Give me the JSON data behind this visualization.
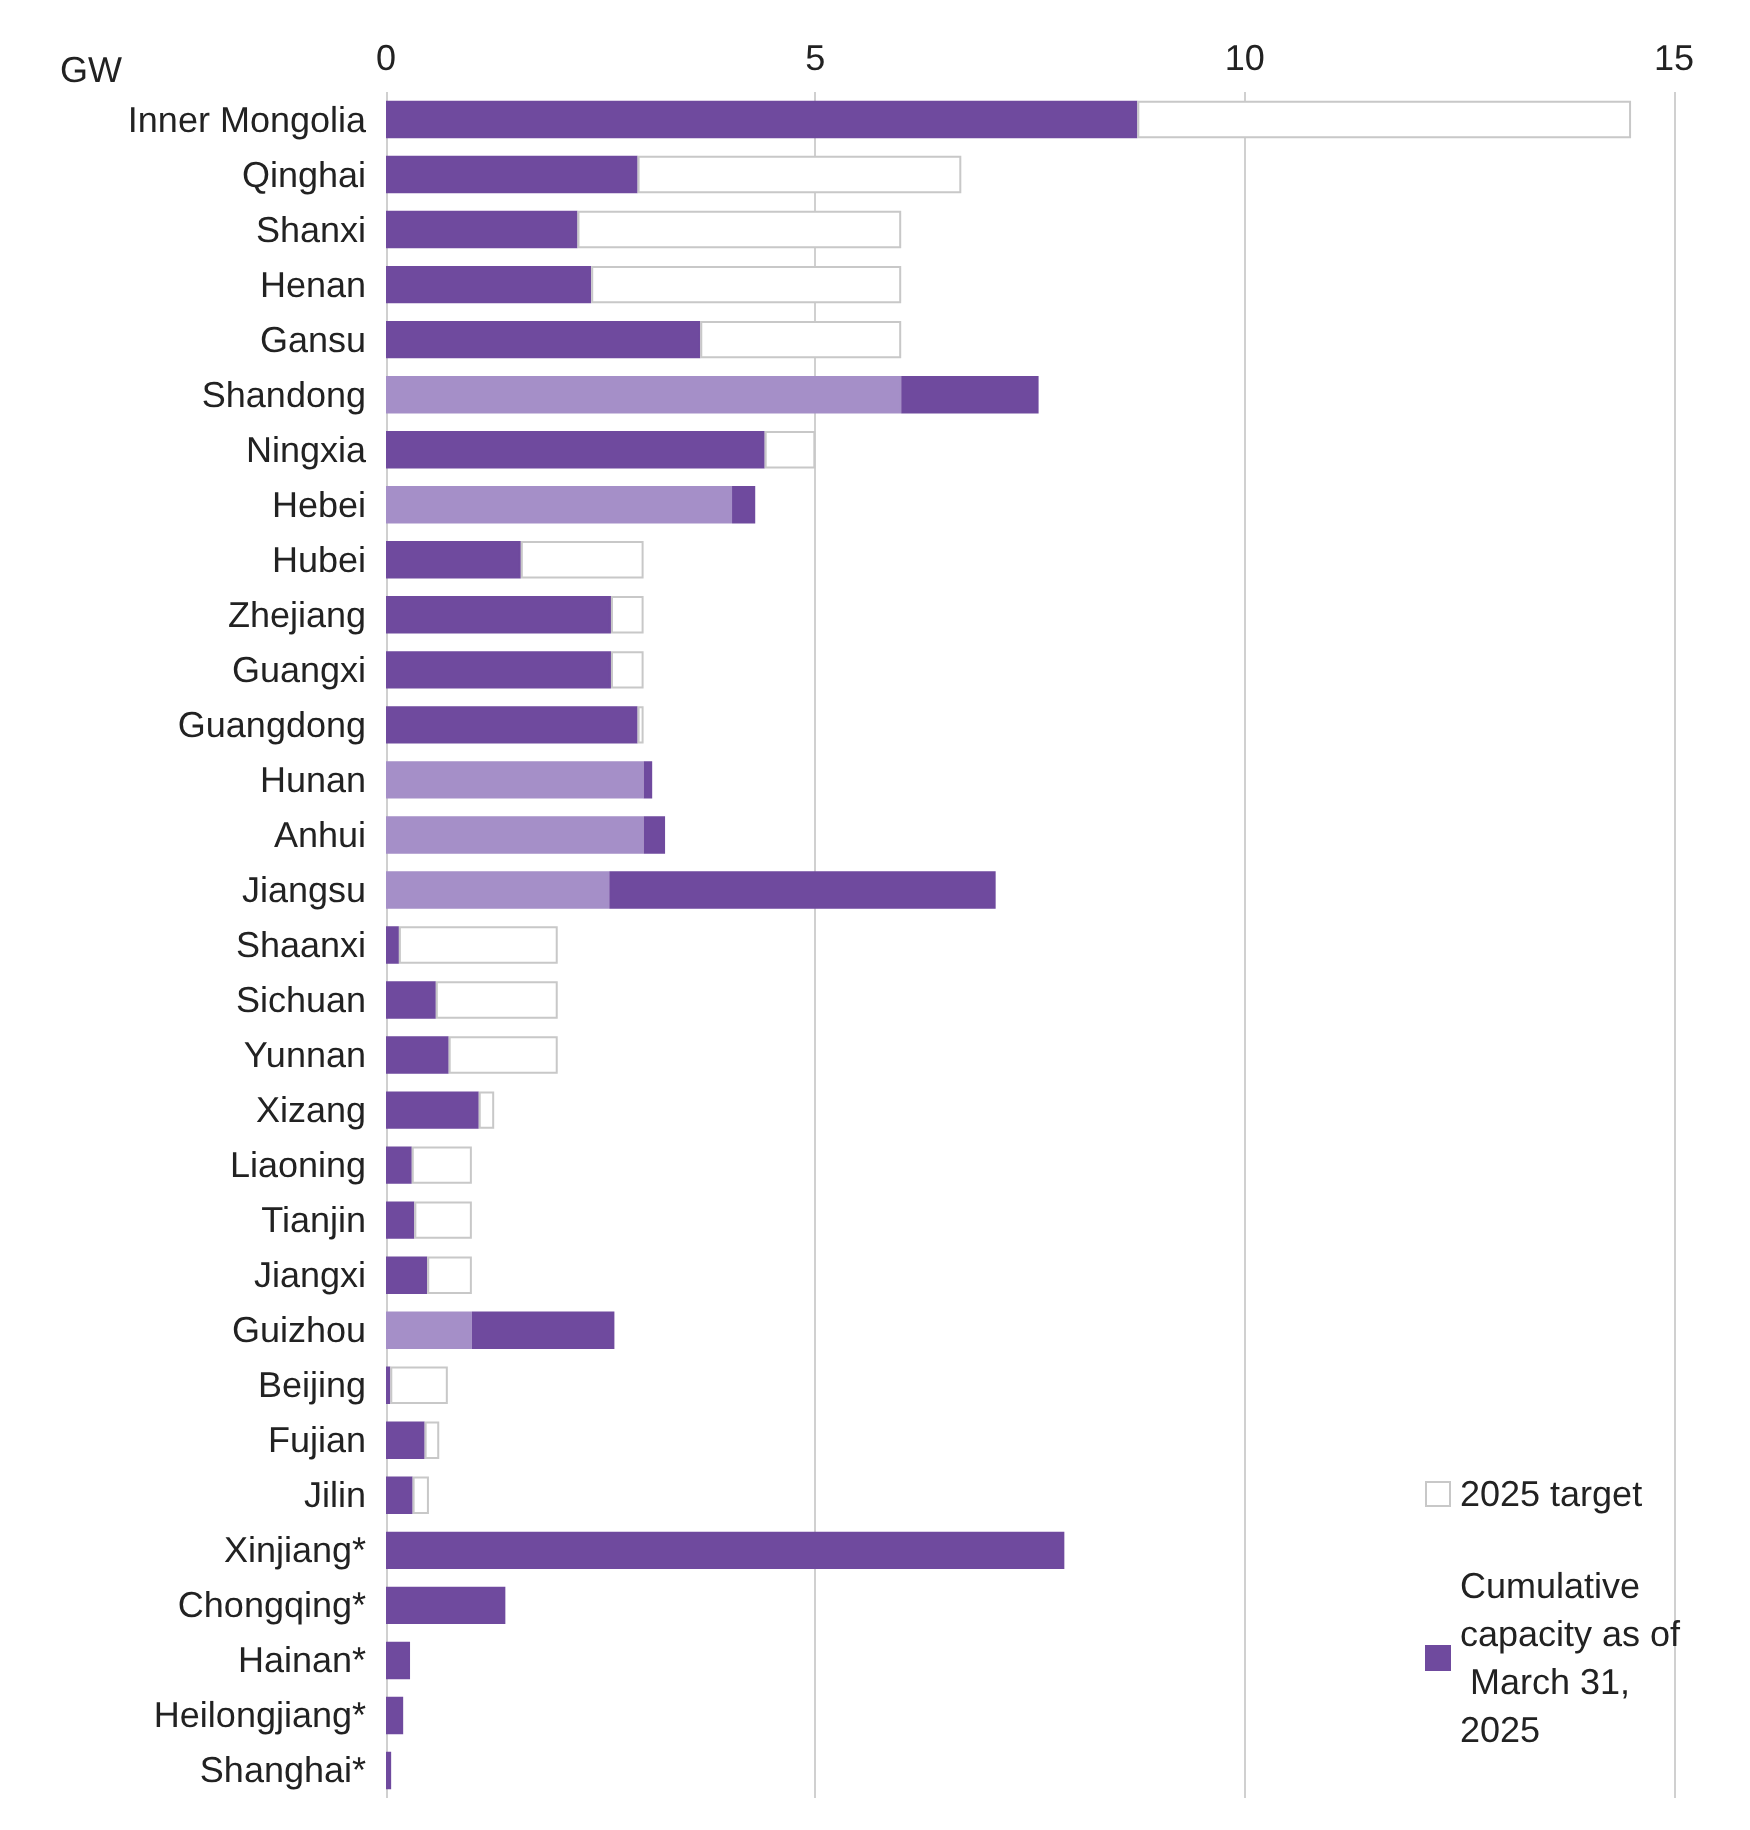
{
  "chart_data": {
    "type": "bar",
    "orientation": "horizontal",
    "stacked": true,
    "xlabel": "GW",
    "categories": [
      "Inner Mongolia",
      "Qinghai",
      "Shanxi",
      "Henan",
      "Gansu",
      "Shandong",
      "Ningxia",
      "Hebei",
      "Hubei",
      "Zhejiang",
      "Guangxi",
      "Guangdong",
      "Hunan",
      "Anhui",
      "Jiangsu",
      "Shaanxi",
      "Sichuan",
      "Yunnan",
      "Xizang",
      "Liaoning",
      "Tianjin",
      "Jiangxi",
      "Guizhou",
      "Beijing",
      "Fujian",
      "Jilin",
      "Xinjiang*",
      "Chongqing*",
      "Hainan*",
      "Heilongjiang*",
      "Shanghai*"
    ],
    "series": [
      {
        "name": "Cumulative capacity as of March 31, 2025",
        "color": "#6f4a9e",
        "values": [
          8.75,
          2.93,
          2.23,
          2.39,
          3.66,
          null,
          4.41,
          null,
          1.57,
          2.62,
          2.62,
          2.93,
          null,
          null,
          null,
          0.15,
          0.58,
          0.73,
          1.08,
          0.3,
          0.33,
          0.48,
          null,
          0.05,
          0.45,
          0.31,
          7.9,
          1.39,
          0.28,
          0.2,
          0.06
        ]
      },
      {
        "color": "#a58fc8",
        "values": [
          null,
          null,
          null,
          null,
          null,
          6.0,
          null,
          4.03,
          null,
          null,
          null,
          null,
          3.0,
          3.0,
          2.6,
          null,
          null,
          null,
          null,
          null,
          null,
          null,
          1.0,
          null,
          null,
          null,
          null,
          null,
          null,
          null,
          null
        ]
      },
      {
        "color": "#6f4a9e",
        "values": [
          null,
          null,
          null,
          null,
          null,
          1.6,
          null,
          0.27,
          null,
          null,
          null,
          null,
          0.1,
          0.25,
          4.5,
          null,
          null,
          null,
          null,
          null,
          null,
          null,
          1.66,
          null,
          null,
          null,
          null,
          null,
          null,
          null,
          null
        ]
      },
      {
        "name": "2025 target",
        "color": "#ffffff",
        "values": [
          5.75,
          3.77,
          3.77,
          3.61,
          2.34,
          null,
          0.59,
          null,
          1.43,
          0.38,
          0.38,
          0.07,
          null,
          null,
          null,
          1.85,
          1.42,
          1.27,
          0.18,
          0.7,
          0.67,
          0.52,
          null,
          0.67,
          0.17,
          0.19,
          null,
          null,
          null,
          null,
          null
        ]
      }
    ],
    "xlim": [
      0,
      15
    ],
    "xticks": [
      0,
      5,
      10,
      15
    ],
    "grid": "x",
    "legend": "bottom right"
  }
}
